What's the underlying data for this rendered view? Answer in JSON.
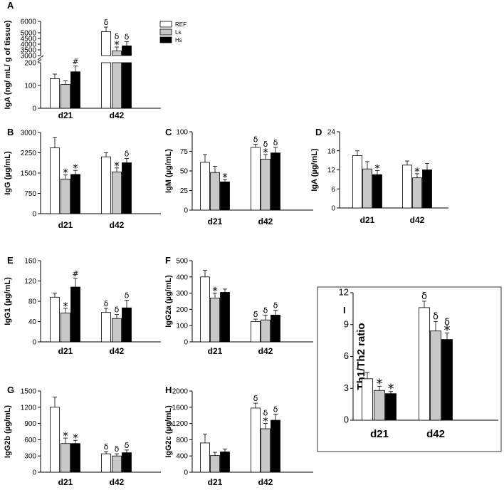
{
  "colors": {
    "REF": "#ffffff",
    "Ls": "#c8c8c8",
    "Hs": "#000000"
  },
  "legend": [
    "REF",
    "Ls",
    "Hs"
  ],
  "chart_data": [
    {
      "panel": "A",
      "type": "bar",
      "broken_axis": true,
      "ylabel": "IgA (ng/ mL/ g of tissue)",
      "categories": [
        "d21",
        "d42"
      ],
      "lower_ylim": [
        0,
        200
      ],
      "lower_ticks": [
        0,
        100,
        200
      ],
      "upper_ylim": [
        3000,
        6000
      ],
      "upper_ticks": [
        3000,
        3500,
        4000,
        4500,
        5000,
        6000
      ],
      "series": [
        {
          "name": "REF",
          "values": [
            130,
            5100
          ],
          "errors": [
            20,
            400
          ],
          "marks": [
            "",
            "δ"
          ]
        },
        {
          "name": "Ls",
          "values": [
            105,
            3400
          ],
          "errors": [
            15,
            350
          ],
          "marks": [
            "",
            "δ*"
          ]
        },
        {
          "name": "Hs",
          "values": [
            160,
            3850
          ],
          "errors": [
            25,
            380
          ],
          "marks": [
            "#",
            "δ"
          ]
        }
      ]
    },
    {
      "panel": "B",
      "type": "bar",
      "ylabel": "IgG (µg/mL)",
      "categories": [
        "d21",
        "d42"
      ],
      "ylim": [
        0,
        3000
      ],
      "ticks": [
        0,
        750,
        1500,
        2250,
        3000
      ],
      "series": [
        {
          "name": "REF",
          "values": [
            2430,
            2100
          ],
          "errors": [
            380,
            150
          ],
          "marks": [
            "",
            ""
          ]
        },
        {
          "name": "Ls",
          "values": [
            1280,
            1540
          ],
          "errors": [
            150,
            150
          ],
          "marks": [
            "*",
            "*"
          ]
        },
        {
          "name": "Hs",
          "values": [
            1450,
            1880
          ],
          "errors": [
            150,
            160
          ],
          "marks": [
            "*",
            "δ"
          ]
        }
      ]
    },
    {
      "panel": "C",
      "type": "bar",
      "ylabel": "IgM (µg/mL)",
      "categories": [
        "d21",
        "d42"
      ],
      "ylim": [
        0,
        100
      ],
      "ticks": [
        0,
        25,
        50,
        75,
        100
      ],
      "series": [
        {
          "name": "REF",
          "values": [
            61,
            80
          ],
          "errors": [
            10,
            4
          ],
          "marks": [
            "",
            "δ"
          ]
        },
        {
          "name": "Ls",
          "values": [
            48,
            65
          ],
          "errors": [
            8,
            6
          ],
          "marks": [
            "",
            "δ*"
          ]
        },
        {
          "name": "Hs",
          "values": [
            36,
            73
          ],
          "errors": [
            3,
            7
          ],
          "marks": [
            "*",
            "δ"
          ]
        }
      ]
    },
    {
      "panel": "D",
      "type": "bar",
      "ylabel": "IgA (µg/mL)",
      "categories": [
        "d21",
        "d42"
      ],
      "ylim": [
        0,
        24
      ],
      "ticks": [
        0,
        6,
        12,
        18,
        24
      ],
      "series": [
        {
          "name": "REF",
          "values": [
            16.5,
            13.5
          ],
          "errors": [
            1.5,
            1.3
          ],
          "marks": [
            "",
            ""
          ]
        },
        {
          "name": "Ls",
          "values": [
            12.3,
            9.5
          ],
          "errors": [
            2.3,
            1.3
          ],
          "marks": [
            "",
            "*"
          ]
        },
        {
          "name": "Hs",
          "values": [
            10.5,
            12.0
          ],
          "errors": [
            1.3,
            2.0
          ],
          "marks": [
            "*",
            ""
          ]
        }
      ]
    },
    {
      "panel": "E",
      "type": "bar",
      "ylabel": "IgG1 (µg/mL)",
      "categories": [
        "d21",
        "d42"
      ],
      "ylim": [
        0,
        160
      ],
      "ticks": [
        0,
        40,
        80,
        120,
        160
      ],
      "series": [
        {
          "name": "REF",
          "values": [
            88,
            58
          ],
          "errors": [
            8,
            8
          ],
          "marks": [
            "",
            "δ"
          ]
        },
        {
          "name": "Ls",
          "values": [
            57,
            46
          ],
          "errors": [
            9,
            8
          ],
          "marks": [
            "*",
            "δ"
          ]
        },
        {
          "name": "Hs",
          "values": [
            108,
            67
          ],
          "errors": [
            17,
            15
          ],
          "marks": [
            "#",
            "δ"
          ]
        }
      ]
    },
    {
      "panel": "F",
      "type": "bar",
      "ylabel": "IgG2a (µg/mL)",
      "categories": [
        "d21",
        "d42"
      ],
      "ylim": [
        0,
        500
      ],
      "ticks": [
        0,
        100,
        200,
        300,
        400,
        500
      ],
      "series": [
        {
          "name": "REF",
          "values": [
            400,
            125
          ],
          "errors": [
            40,
            15
          ],
          "marks": [
            "",
            "δ"
          ]
        },
        {
          "name": "Ls",
          "values": [
            270,
            135
          ],
          "errors": [
            30,
            30
          ],
          "marks": [
            "*",
            "δ"
          ]
        },
        {
          "name": "Hs",
          "values": [
            305,
            165
          ],
          "errors": [
            20,
            30
          ],
          "marks": [
            "",
            "δ"
          ]
        }
      ]
    },
    {
      "panel": "G",
      "type": "bar",
      "ylabel": "IgG2b (µg/mL)",
      "categories": [
        "d21",
        "d42"
      ],
      "ylim": [
        0,
        1500
      ],
      "ticks": [
        0,
        300,
        600,
        900,
        1200,
        1500
      ],
      "series": [
        {
          "name": "REF",
          "values": [
            1200,
            340
          ],
          "errors": [
            190,
            40
          ],
          "marks": [
            "",
            "δ"
          ]
        },
        {
          "name": "Ls",
          "values": [
            530,
            300
          ],
          "errors": [
            100,
            40
          ],
          "marks": [
            "*",
            "δ"
          ]
        },
        {
          "name": "Hs",
          "values": [
            530,
            360
          ],
          "errors": [
            60,
            50
          ],
          "marks": [
            "*",
            "δ"
          ]
        }
      ]
    },
    {
      "panel": "H",
      "type": "bar",
      "ylabel": "IgG2c (µg/mL)",
      "categories": [
        "d21",
        "d42"
      ],
      "ylim": [
        0,
        2000
      ],
      "ticks": [
        0,
        400,
        800,
        1200,
        1600,
        2000
      ],
      "series": [
        {
          "name": "REF",
          "values": [
            720,
            1580
          ],
          "errors": [
            220,
            120
          ],
          "marks": [
            "",
            "δ"
          ]
        },
        {
          "name": "Ls",
          "values": [
            410,
            1070
          ],
          "errors": [
            80,
            130
          ],
          "marks": [
            "",
            "δ*"
          ]
        },
        {
          "name": "Hs",
          "values": [
            500,
            1280
          ],
          "errors": [
            70,
            150
          ],
          "marks": [
            "",
            "δ"
          ]
        }
      ]
    },
    {
      "panel": "I",
      "type": "bar",
      "ylabel": "Th1/Th2 ratio",
      "categories": [
        "d21",
        "d42"
      ],
      "ylim": [
        0,
        12
      ],
      "ticks": [
        0,
        3,
        6,
        9,
        12
      ],
      "series": [
        {
          "name": "REF",
          "values": [
            3.9,
            10.6
          ],
          "errors": [
            0.6,
            0.6
          ],
          "marks": [
            "",
            "δ"
          ]
        },
        {
          "name": "Ls",
          "values": [
            2.8,
            8.4
          ],
          "errors": [
            0.4,
            0.9
          ],
          "marks": [
            "*",
            "δ"
          ]
        },
        {
          "name": "Hs",
          "values": [
            2.5,
            7.6
          ],
          "errors": [
            0.2,
            0.6
          ],
          "marks": [
            "*",
            "δ*"
          ]
        }
      ]
    }
  ]
}
